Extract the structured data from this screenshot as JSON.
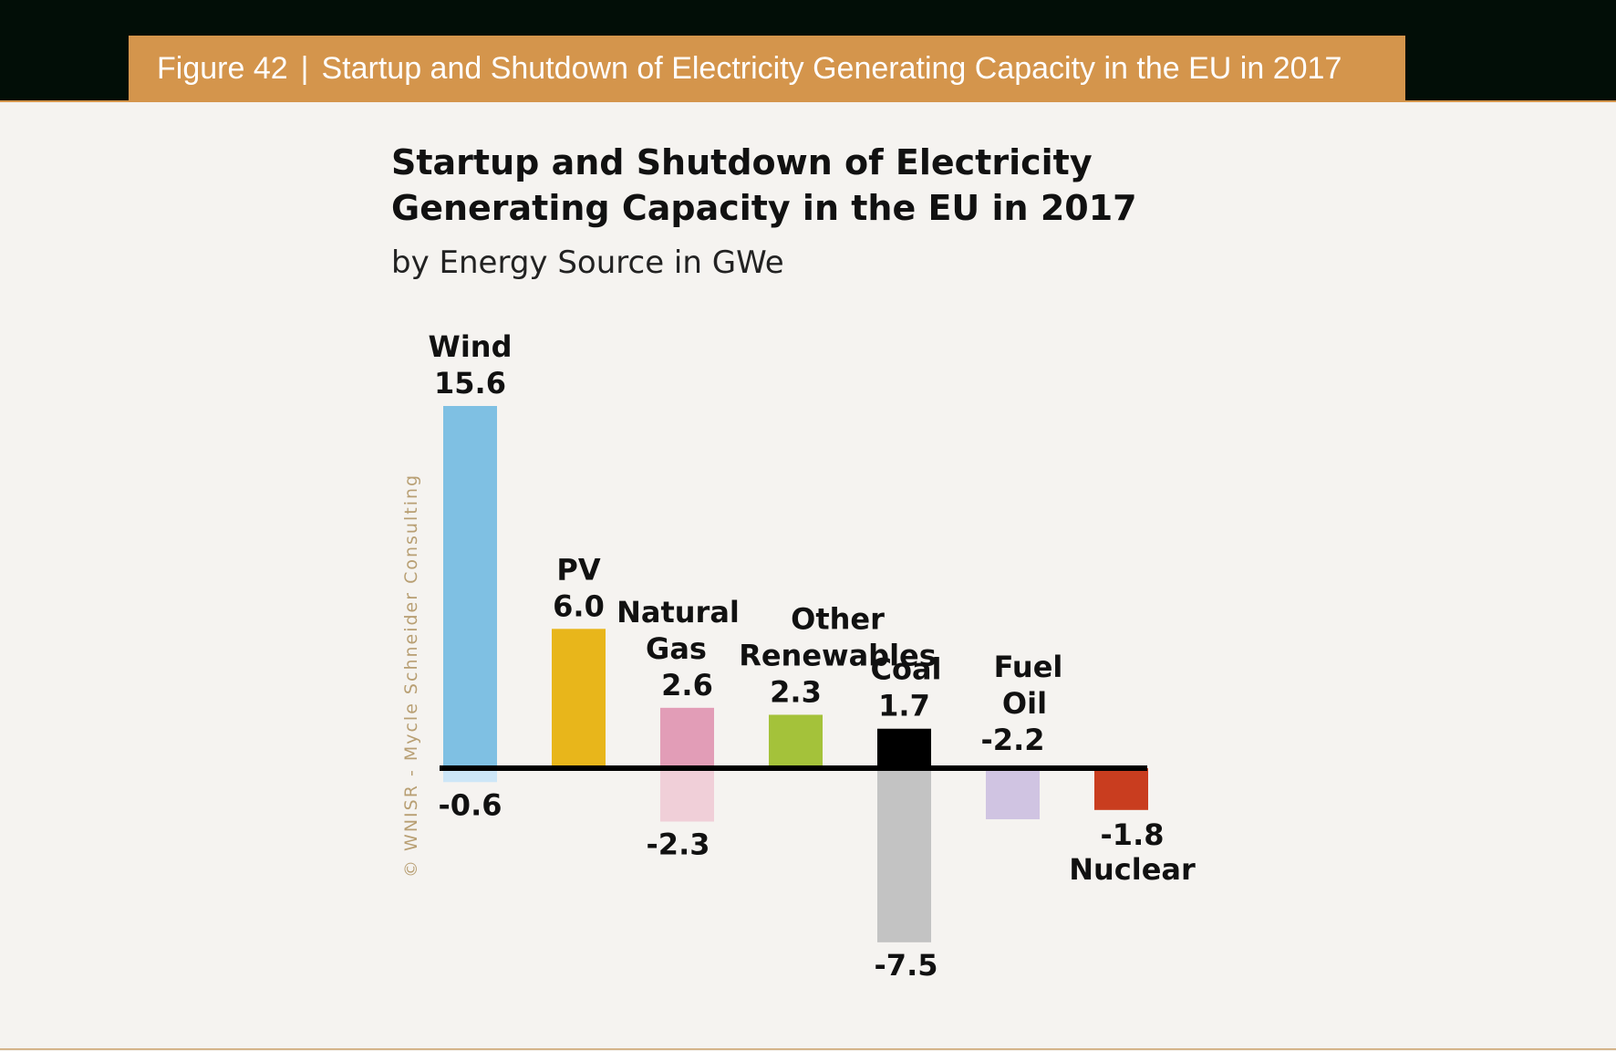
{
  "header": {
    "figure_label": "Figure 42",
    "separator": "|",
    "title": "Startup and Shutdown of Electricity Generating Capacity in the EU in 2017"
  },
  "credit": "© WNISR - Mycle Schneider Consulting",
  "chart_data": {
    "type": "bar",
    "title": "Startup and Shutdown of Electricity Generating Capacity in the EU in 2017",
    "subtitle": "by Energy Source in GWe",
    "xlabel": "",
    "ylabel": "",
    "grid": false,
    "legend": "none",
    "categories": [
      "Wind",
      "PV",
      "Natural Gas",
      "Other Renewables",
      "Coal",
      "Fuel Oil",
      "Nuclear"
    ],
    "series": [
      {
        "values": [
          15.6,
          6.0,
          2.6,
          2.3,
          1.7,
          0,
          0
        ],
        "labels": [
          "15.6",
          "6.0",
          "2.6",
          "2.3",
          "1.7",
          "",
          ""
        ],
        "colors": [
          "#7fc0e3",
          "#e8b61b",
          "#e29db7",
          "#a4c23a",
          "#000000",
          "#d0c4e2",
          "#c93d1f"
        ]
      },
      {
        "values": [
          -0.6,
          0,
          -2.3,
          0,
          -7.5,
          -2.2,
          -1.8
        ],
        "labels": [
          "-0.6",
          "",
          "-2.3",
          "",
          "-7.5",
          "-2.2",
          "-1.8"
        ],
        "colors": [
          "#cde6f7",
          "#ffffff",
          "#f0cfd8",
          "#ffffff",
          "#c3c3c3",
          "#d0c4e2",
          "#c93d1f"
        ]
      }
    ],
    "ylim": [
      -7.5,
      15.6
    ]
  }
}
